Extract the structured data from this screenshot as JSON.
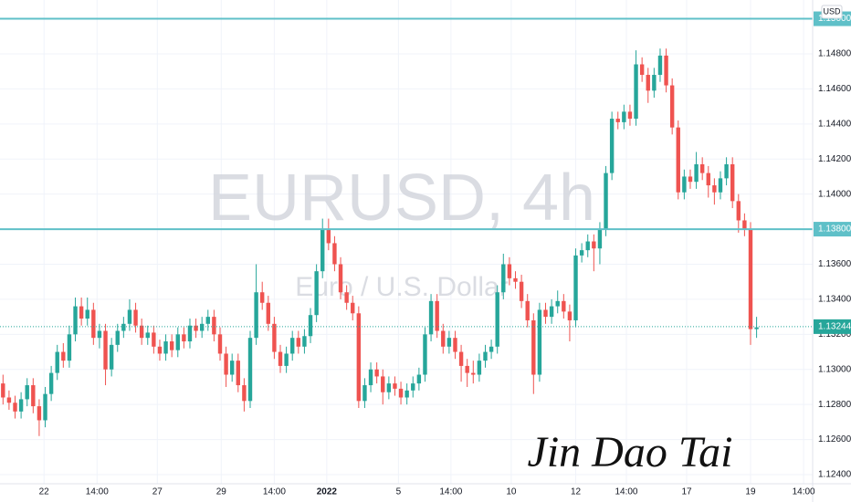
{
  "chart_data": {
    "type": "candlestick",
    "title": "EURUSD, 4h",
    "subtitle": "Euro / U.S. Dollar",
    "currency": "USD",
    "signature": "Jin Dao Tai",
    "up_color": "#26a69a",
    "down_color": "#ef5350",
    "level_color": "#5fc0c8",
    "grid": true,
    "ylim": [
      1.12348,
      1.15107
    ],
    "xlim": [
      -0.5,
      134.3
    ],
    "yticks": [
      {
        "value": 1.124,
        "label": "1.12400"
      },
      {
        "value": 1.126,
        "label": "1.12600"
      },
      {
        "value": 1.128,
        "label": "1.12800"
      },
      {
        "value": 1.13,
        "label": "1.13000"
      },
      {
        "value": 1.132,
        "label": "1.13200"
      },
      {
        "value": 1.134,
        "label": "1.13400"
      },
      {
        "value": 1.136,
        "label": "1.13600"
      },
      {
        "value": 1.14,
        "label": "1.14000"
      },
      {
        "value": 1.142,
        "label": "1.14200"
      },
      {
        "value": 1.144,
        "label": "1.14400"
      },
      {
        "value": 1.146,
        "label": "1.14600"
      },
      {
        "value": 1.148,
        "label": "1.14800"
      }
    ],
    "xticks": [
      {
        "value": 6.8,
        "label": "22"
      },
      {
        "value": 15.6,
        "label": "14:00"
      },
      {
        "value": 25.6,
        "label": "27"
      },
      {
        "value": 36.2,
        "label": "29"
      },
      {
        "value": 45,
        "label": "14:00"
      },
      {
        "value": 53.7,
        "label": "2022"
      },
      {
        "value": 65.6,
        "label": "5"
      },
      {
        "value": 74.3,
        "label": "14:00"
      },
      {
        "value": 84.3,
        "label": "10"
      },
      {
        "value": 95,
        "label": "12"
      },
      {
        "value": 103.4,
        "label": "14:00"
      },
      {
        "value": 113.4,
        "label": "17"
      },
      {
        "value": 124,
        "label": "19"
      },
      {
        "value": 132.8,
        "label": "14:00"
      }
    ],
    "levels": [
      {
        "value": 1.15,
        "label": "1.15000"
      },
      {
        "value": 1.138,
        "label": "1.13800"
      }
    ],
    "last_price": {
      "value": 1.13244,
      "label": "1.13244"
    },
    "candles": [
      [
        1.1292,
        1.1297,
        1.128,
        1.1284
      ],
      [
        1.1284,
        1.1288,
        1.1277,
        1.1281
      ],
      [
        1.1281,
        1.1285,
        1.1272,
        1.1276
      ],
      [
        1.1276,
        1.1287,
        1.1272,
        1.1283
      ],
      [
        1.1283,
        1.1295,
        1.1279,
        1.1291
      ],
      [
        1.1291,
        1.1295,
        1.1275,
        1.1279
      ],
      [
        1.1279,
        1.1283,
        1.1262,
        1.1271
      ],
      [
        1.1271,
        1.129,
        1.1267,
        1.1286
      ],
      [
        1.1286,
        1.1302,
        1.1282,
        1.1298
      ],
      [
        1.1298,
        1.1314,
        1.1294,
        1.131
      ],
      [
        1.131,
        1.1315,
        1.1301,
        1.1305
      ],
      [
        1.1305,
        1.1325,
        1.1301,
        1.132
      ],
      [
        1.132,
        1.1341,
        1.1316,
        1.1336
      ],
      [
        1.1336,
        1.1341,
        1.1325,
        1.1329
      ],
      [
        1.1329,
        1.1341,
        1.1325,
        1.1334
      ],
      [
        1.1334,
        1.1338,
        1.1314,
        1.1318
      ],
      [
        1.1318,
        1.1326,
        1.1312,
        1.1322
      ],
      [
        1.1322,
        1.1326,
        1.1291,
        1.13
      ],
      [
        1.13,
        1.1318,
        1.1296,
        1.1314
      ],
      [
        1.1314,
        1.1326,
        1.131,
        1.1322
      ],
      [
        1.1322,
        1.133,
        1.1318,
        1.1326
      ],
      [
        1.1326,
        1.134,
        1.1322,
        1.1334
      ],
      [
        1.1334,
        1.1338,
        1.1321,
        1.1325
      ],
      [
        1.1325,
        1.1329,
        1.1314,
        1.1318
      ],
      [
        1.1318,
        1.1325,
        1.1314,
        1.1321
      ],
      [
        1.1321,
        1.1325,
        1.1309,
        1.1313
      ],
      [
        1.1313,
        1.1317,
        1.1305,
        1.1309
      ],
      [
        1.1309,
        1.132,
        1.1305,
        1.1316
      ],
      [
        1.1316,
        1.132,
        1.1307,
        1.1311
      ],
      [
        1.1311,
        1.1324,
        1.1307,
        1.132
      ],
      [
        1.132,
        1.1324,
        1.1312,
        1.1316
      ],
      [
        1.1316,
        1.1329,
        1.1312,
        1.1325
      ],
      [
        1.1325,
        1.1329,
        1.1318,
        1.1322
      ],
      [
        1.1322,
        1.133,
        1.1318,
        1.1326
      ],
      [
        1.1326,
        1.1334,
        1.1322,
        1.133
      ],
      [
        1.133,
        1.1334,
        1.1316,
        1.132
      ],
      [
        1.132,
        1.1324,
        1.1305,
        1.1309
      ],
      [
        1.1309,
        1.1313,
        1.129,
        1.1297
      ],
      [
        1.1297,
        1.1309,
        1.1293,
        1.1305
      ],
      [
        1.1305,
        1.1309,
        1.1287,
        1.1291
      ],
      [
        1.1291,
        1.1295,
        1.1276,
        1.1282
      ],
      [
        1.1282,
        1.1322,
        1.1278,
        1.1318
      ],
      [
        1.1318,
        1.136,
        1.1314,
        1.1344
      ],
      [
        1.1344,
        1.135,
        1.1334,
        1.1338
      ],
      [
        1.1338,
        1.1342,
        1.1322,
        1.1326
      ],
      [
        1.1326,
        1.133,
        1.1306,
        1.131
      ],
      [
        1.131,
        1.1314,
        1.1298,
        1.1302
      ],
      [
        1.1302,
        1.1313,
        1.1298,
        1.1309
      ],
      [
        1.1309,
        1.1322,
        1.1305,
        1.1318
      ],
      [
        1.1318,
        1.1322,
        1.1309,
        1.1313
      ],
      [
        1.1313,
        1.1323,
        1.1309,
        1.1319
      ],
      [
        1.1319,
        1.1335,
        1.1315,
        1.1331
      ],
      [
        1.1331,
        1.136,
        1.1327,
        1.1356
      ],
      [
        1.1356,
        1.1386,
        1.1352,
        1.138
      ],
      [
        1.138,
        1.1386,
        1.1368,
        1.1372
      ],
      [
        1.1372,
        1.1376,
        1.1356,
        1.136
      ],
      [
        1.136,
        1.1364,
        1.134,
        1.1344
      ],
      [
        1.1344,
        1.1348,
        1.1334,
        1.1338
      ],
      [
        1.1338,
        1.1342,
        1.1328,
        1.1332
      ],
      [
        1.1332,
        1.1336,
        1.1278,
        1.1282
      ],
      [
        1.1282,
        1.1295,
        1.1278,
        1.1291
      ],
      [
        1.1291,
        1.1304,
        1.1287,
        1.13
      ],
      [
        1.13,
        1.1304,
        1.1292,
        1.1296
      ],
      [
        1.1296,
        1.13,
        1.128,
        1.1287
      ],
      [
        1.1287,
        1.1296,
        1.1283,
        1.1292
      ],
      [
        1.1292,
        1.1296,
        1.1285,
        1.1289
      ],
      [
        1.1289,
        1.1293,
        1.128,
        1.1284
      ],
      [
        1.1284,
        1.1292,
        1.128,
        1.1288
      ],
      [
        1.1288,
        1.1296,
        1.1284,
        1.1292
      ],
      [
        1.1292,
        1.1301,
        1.1288,
        1.1297
      ],
      [
        1.1297,
        1.1324,
        1.1293,
        1.132
      ],
      [
        1.132,
        1.1343,
        1.1316,
        1.1339
      ],
      [
        1.1339,
        1.1343,
        1.1318,
        1.1322
      ],
      [
        1.1322,
        1.1326,
        1.1309,
        1.1313
      ],
      [
        1.1313,
        1.1322,
        1.1309,
        1.1318
      ],
      [
        1.1318,
        1.1322,
        1.1306,
        1.131
      ],
      [
        1.131,
        1.1314,
        1.1293,
        1.1302
      ],
      [
        1.1302,
        1.1306,
        1.129,
        1.1298
      ],
      [
        1.1298,
        1.1305,
        1.1292,
        1.1297
      ],
      [
        1.1297,
        1.1309,
        1.1293,
        1.1305
      ],
      [
        1.1305,
        1.1314,
        1.1301,
        1.131
      ],
      [
        1.131,
        1.1317,
        1.1306,
        1.1313
      ],
      [
        1.1313,
        1.1348,
        1.1309,
        1.1344
      ],
      [
        1.1344,
        1.1366,
        1.134,
        1.136
      ],
      [
        1.136,
        1.1364,
        1.1348,
        1.1352
      ],
      [
        1.1352,
        1.1356,
        1.1346,
        1.135
      ],
      [
        1.135,
        1.1354,
        1.1335,
        1.1339
      ],
      [
        1.1339,
        1.1343,
        1.1324,
        1.1328
      ],
      [
        1.1328,
        1.1332,
        1.1286,
        1.1297
      ],
      [
        1.1297,
        1.1338,
        1.1293,
        1.1334
      ],
      [
        1.1334,
        1.1338,
        1.1326,
        1.133
      ],
      [
        1.133,
        1.134,
        1.1326,
        1.1336
      ],
      [
        1.1336,
        1.1345,
        1.1332,
        1.1339
      ],
      [
        1.1339,
        1.1343,
        1.1329,
        1.1333
      ],
      [
        1.1333,
        1.1337,
        1.1316,
        1.1328
      ],
      [
        1.1328,
        1.1369,
        1.1324,
        1.1365
      ],
      [
        1.1365,
        1.1372,
        1.1361,
        1.1368
      ],
      [
        1.1368,
        1.1377,
        1.1364,
        1.1373
      ],
      [
        1.1373,
        1.1377,
        1.1356,
        1.1369
      ],
      [
        1.1369,
        1.1384,
        1.136,
        1.138
      ],
      [
        1.138,
        1.1416,
        1.1376,
        1.1412
      ],
      [
        1.1412,
        1.1447,
        1.1408,
        1.1443
      ],
      [
        1.1443,
        1.1447,
        1.1437,
        1.1441
      ],
      [
        1.1441,
        1.1451,
        1.1437,
        1.1447
      ],
      [
        1.1447,
        1.1451,
        1.1439,
        1.1443
      ],
      [
        1.1443,
        1.1482,
        1.1439,
        1.1474
      ],
      [
        1.1474,
        1.1478,
        1.1464,
        1.1468
      ],
      [
        1.1468,
        1.1472,
        1.1452,
        1.1459
      ],
      [
        1.1459,
        1.1472,
        1.1455,
        1.1468
      ],
      [
        1.1468,
        1.1483,
        1.1464,
        1.1479
      ],
      [
        1.1479,
        1.1483,
        1.1458,
        1.1462
      ],
      [
        1.1462,
        1.1466,
        1.1434,
        1.1438
      ],
      [
        1.1438,
        1.1442,
        1.1397,
        1.1401
      ],
      [
        1.1401,
        1.1414,
        1.1397,
        1.141
      ],
      [
        1.141,
        1.1414,
        1.1403,
        1.1407
      ],
      [
        1.1407,
        1.1424,
        1.1403,
        1.1417
      ],
      [
        1.1417,
        1.1421,
        1.1408,
        1.1412
      ],
      [
        1.1412,
        1.1416,
        1.1398,
        1.1405
      ],
      [
        1.1405,
        1.1409,
        1.1394,
        1.1401
      ],
      [
        1.1401,
        1.1413,
        1.1397,
        1.1409
      ],
      [
        1.1409,
        1.1421,
        1.1405,
        1.1417
      ],
      [
        1.1417,
        1.1421,
        1.1392,
        1.1396
      ],
      [
        1.1396,
        1.14,
        1.1378,
        1.1385
      ],
      [
        1.1385,
        1.1389,
        1.1376,
        1.138
      ],
      [
        1.138,
        1.1384,
        1.1314,
        1.1323
      ],
      [
        1.1323,
        1.133,
        1.1318,
        1.1324
      ]
    ]
  }
}
